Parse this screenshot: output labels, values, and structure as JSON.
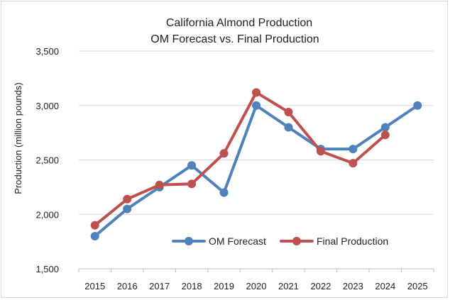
{
  "chart_data": {
    "type": "line",
    "title": "California Almond Production",
    "subtitle": "OM Forecast vs. Final Production",
    "xlabel": "",
    "ylabel": "Production (million pounds)",
    "ylim": [
      1500,
      3500
    ],
    "ytick_values": [
      1500,
      2000,
      2500,
      3000,
      3500
    ],
    "ytick_labels": [
      "1,500",
      "2,000",
      "2,500",
      "3,000",
      "3,500"
    ],
    "categories": [
      "2015",
      "2016",
      "2017",
      "2018",
      "2019",
      "2020",
      "2021",
      "2022",
      "2023",
      "2024",
      "2025"
    ],
    "grid": "horizontal",
    "legend_position": "bottom-right",
    "series": [
      {
        "name": "OM Forecast",
        "color": "#4f81bd",
        "values": [
          1800,
          2050,
          2250,
          2450,
          2200,
          3000,
          2800,
          2600,
          2600,
          2800,
          3000
        ]
      },
      {
        "name": "Final Production",
        "color": "#c0504d",
        "values": [
          1900,
          2140,
          2270,
          2280,
          2560,
          3120,
          2940,
          2580,
          2470,
          2730,
          null
        ]
      }
    ]
  }
}
